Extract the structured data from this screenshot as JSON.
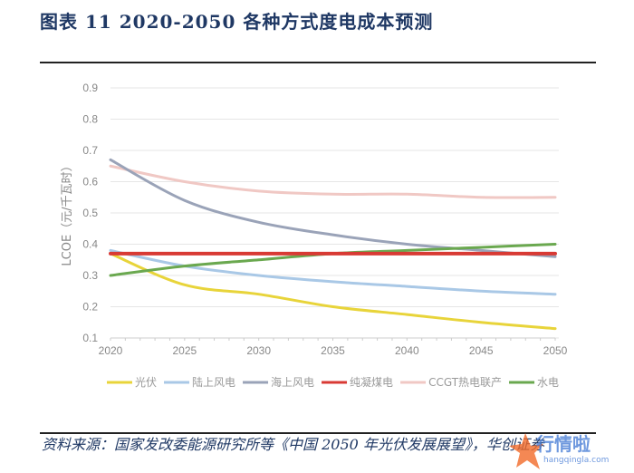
{
  "title": "图表 11  2020-2050 各种方式度电成本预测",
  "source": "资料来源：国家发改委能源研究所等《中国 2050 年光伏发展展望》，华创证券",
  "watermark": {
    "text": "行情啦",
    "url": "hangqingla.com"
  },
  "chart_data": {
    "type": "line",
    "title": "",
    "xlabel": "",
    "ylabel": "LCOE（元/千瓦时）",
    "x": [
      2020,
      2025,
      2030,
      2035,
      2040,
      2045,
      2050
    ],
    "x_ticks": [
      "2020",
      "2025",
      "2030",
      "2035",
      "2040",
      "2045",
      "2050"
    ],
    "y_ticks": [
      "0.1",
      "0.2",
      "0.3",
      "0.4",
      "0.5",
      "0.6",
      "0.7",
      "0.8",
      "0.9"
    ],
    "ylim": [
      0.1,
      0.9
    ],
    "grid": true,
    "legend_position": "bottom",
    "series": [
      {
        "name": "光伏",
        "color": "#e8d43a",
        "values": [
          0.37,
          0.27,
          0.24,
          0.2,
          0.175,
          0.15,
          0.13
        ]
      },
      {
        "name": "陆上风电",
        "color": "#a9c8e6",
        "values": [
          0.38,
          0.33,
          0.3,
          0.28,
          0.265,
          0.25,
          0.24
        ]
      },
      {
        "name": "海上风电",
        "color": "#9aa3b8",
        "values": [
          0.67,
          0.54,
          0.47,
          0.43,
          0.4,
          0.38,
          0.36
        ]
      },
      {
        "name": "纯凝煤电",
        "color": "#d83a34",
        "values": [
          0.37,
          0.37,
          0.37,
          0.37,
          0.37,
          0.37,
          0.37
        ]
      },
      {
        "name": "CCGT热电联产",
        "color": "#f0c8c4",
        "values": [
          0.65,
          0.6,
          0.57,
          0.56,
          0.56,
          0.55,
          0.55
        ]
      },
      {
        "name": "水电",
        "color": "#6aa84f",
        "values": [
          0.3,
          0.33,
          0.35,
          0.37,
          0.38,
          0.39,
          0.4
        ]
      }
    ]
  }
}
